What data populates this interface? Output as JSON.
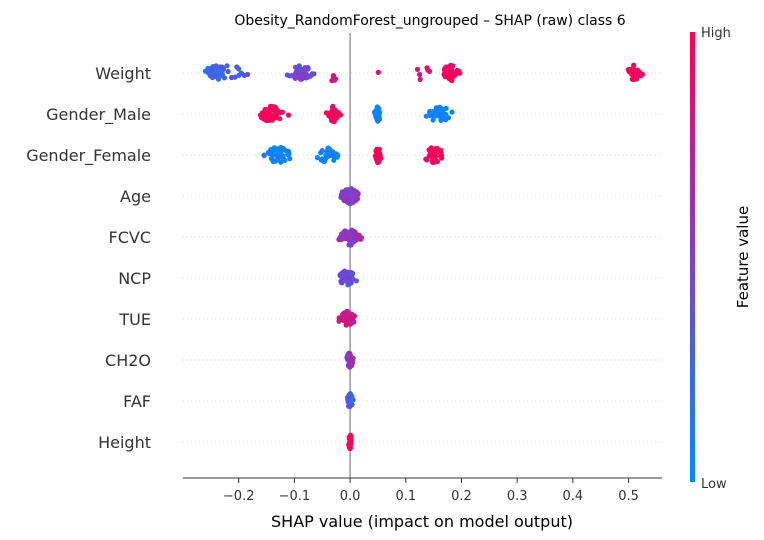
{
  "chart_data": {
    "type": "scatter",
    "subtype": "shap-beeswarm",
    "title": "Obesity_RandomForest_ungrouped – SHAP (raw) class 6",
    "xlabel": "SHAP value (impact on model output)",
    "xlim": [
      -0.3,
      0.56
    ],
    "xticks": [
      "−0.2",
      "−0.1",
      "0.0",
      "0.1",
      "0.2",
      "0.3",
      "0.4",
      "0.5"
    ],
    "xtick_values": [
      -0.2,
      -0.1,
      0.0,
      0.1,
      0.2,
      0.3,
      0.4,
      0.5
    ],
    "colorbar": {
      "title": "Feature value",
      "high": "High",
      "low": "Low",
      "high_color": "#ff0052",
      "low_color": "#008bfb",
      "mid_color": "#7c3fd0"
    },
    "grid": "horizontal dotted per feature",
    "zero_line": true,
    "features": [
      {
        "name": "Weight",
        "clusters": [
          {
            "center": -0.245,
            "spread": 0.015,
            "n": 40,
            "value": 0.2
          },
          {
            "center": -0.22,
            "spread": 0.03,
            "n": 18,
            "value": 0.3
          },
          {
            "center": -0.085,
            "spread": 0.02,
            "n": 40,
            "value": 0.45
          },
          {
            "center": -0.03,
            "spread": 0.012,
            "n": 5,
            "value": 0.7
          },
          {
            "center": 0.05,
            "spread": 0.002,
            "n": 1,
            "value": 0.95
          },
          {
            "center": 0.13,
            "spread": 0.015,
            "n": 6,
            "value": 0.9
          },
          {
            "center": 0.18,
            "spread": 0.012,
            "n": 40,
            "value": 1.0
          },
          {
            "center": 0.51,
            "spread": 0.01,
            "n": 30,
            "value": 1.0
          }
        ]
      },
      {
        "name": "Gender_Male",
        "clusters": [
          {
            "center": -0.14,
            "spread": 0.02,
            "n": 45,
            "value": 1.0
          },
          {
            "center": -0.03,
            "spread": 0.008,
            "n": 30,
            "value": 1.0
          },
          {
            "center": 0.05,
            "spread": 0.004,
            "n": 40,
            "value": 0.0
          },
          {
            "center": 0.16,
            "spread": 0.018,
            "n": 35,
            "value": 0.0
          }
        ]
      },
      {
        "name": "Gender_Female",
        "clusters": [
          {
            "center": -0.13,
            "spread": 0.02,
            "n": 40,
            "value": 0.0
          },
          {
            "center": -0.04,
            "spread": 0.015,
            "n": 30,
            "value": 0.0
          },
          {
            "center": 0.05,
            "spread": 0.004,
            "n": 45,
            "value": 1.0
          },
          {
            "center": 0.15,
            "spread": 0.015,
            "n": 35,
            "value": 1.0
          }
        ]
      },
      {
        "name": "Age",
        "clusters": [
          {
            "center": 0.0,
            "spread": 0.015,
            "n": 60,
            "value": 0.5
          }
        ]
      },
      {
        "name": "FCVC",
        "clusters": [
          {
            "center": 0.0,
            "spread": 0.015,
            "n": 60,
            "value": 0.6
          }
        ]
      },
      {
        "name": "NCP",
        "clusters": [
          {
            "center": -0.005,
            "spread": 0.012,
            "n": 50,
            "value": 0.4
          }
        ]
      },
      {
        "name": "TUE",
        "clusters": [
          {
            "center": -0.005,
            "spread": 0.01,
            "n": 45,
            "value": 0.8
          }
        ]
      },
      {
        "name": "CH2O",
        "clusters": [
          {
            "center": 0.0,
            "spread": 0.005,
            "n": 35,
            "value": 0.6
          }
        ]
      },
      {
        "name": "FAF",
        "clusters": [
          {
            "center": 0.0,
            "spread": 0.004,
            "n": 30,
            "value": 0.3
          }
        ]
      },
      {
        "name": "Height",
        "clusters": [
          {
            "center": 0.0,
            "spread": 0.002,
            "n": 25,
            "value": 0.9
          }
        ]
      }
    ]
  }
}
